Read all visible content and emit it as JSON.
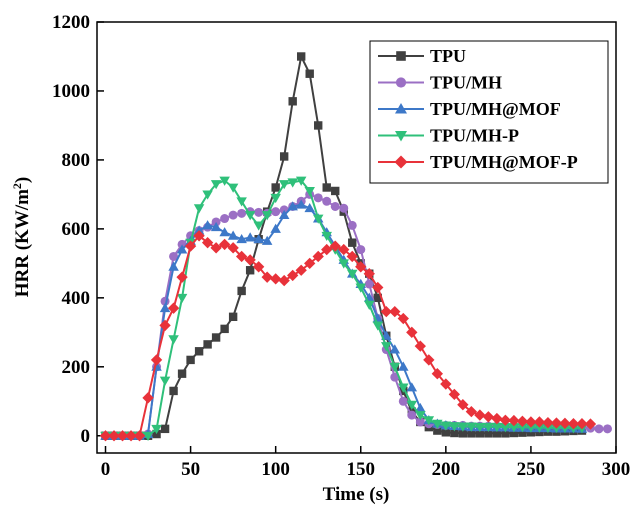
{
  "chart_data": {
    "type": "line",
    "title": "",
    "xlabel": "Time (s)",
    "ylabel_main": "HRR (KW/m",
    "ylabel_sup": "2",
    "ylabel_close": ")",
    "xlim": [
      -5,
      300
    ],
    "ylim": [
      -50,
      1200
    ],
    "xticks": [
      0,
      50,
      100,
      150,
      200,
      250,
      300
    ],
    "yticks": [
      0,
      200,
      400,
      600,
      800,
      1000,
      1200
    ],
    "grid": false,
    "legend_position": "top-right",
    "series": [
      {
        "name": "TPU",
        "color": "#404040",
        "marker": "square",
        "x": [
          0,
          5,
          10,
          15,
          20,
          25,
          30,
          35,
          40,
          45,
          50,
          55,
          60,
          65,
          70,
          75,
          80,
          85,
          90,
          95,
          100,
          105,
          110,
          115,
          120,
          125,
          130,
          135,
          140,
          145,
          150,
          155,
          160,
          165,
          170,
          175,
          180,
          185,
          190,
          195,
          200,
          205,
          210,
          215,
          220,
          225,
          230,
          235,
          240,
          245,
          250,
          255,
          260,
          265,
          270,
          275,
          280
        ],
        "y": [
          0,
          0,
          0,
          0,
          0,
          0,
          5,
          20,
          130,
          180,
          220,
          245,
          265,
          285,
          310,
          345,
          420,
          480,
          570,
          650,
          720,
          810,
          970,
          1100,
          1050,
          900,
          720,
          710,
          650,
          560,
          500,
          470,
          400,
          290,
          200,
          130,
          70,
          40,
          25,
          15,
          10,
          8,
          7,
          7,
          7,
          7,
          7,
          7,
          8,
          9,
          10,
          11,
          12,
          12,
          13,
          14,
          15
        ]
      },
      {
        "name": "TPU/MH",
        "color": "#9b6fc4",
        "marker": "circle",
        "x": [
          0,
          5,
          10,
          15,
          20,
          25,
          30,
          35,
          40,
          45,
          50,
          55,
          60,
          65,
          70,
          75,
          80,
          85,
          90,
          95,
          100,
          105,
          110,
          115,
          120,
          125,
          130,
          135,
          140,
          145,
          150,
          155,
          160,
          165,
          170,
          175,
          180,
          185,
          190,
          195,
          200,
          205,
          210,
          215,
          220,
          225,
          230,
          235,
          240,
          245,
          250,
          255,
          260,
          265,
          270,
          275,
          280,
          285,
          290,
          295
        ],
        "y": [
          0,
          0,
          0,
          0,
          0,
          5,
          200,
          390,
          520,
          555,
          580,
          595,
          605,
          620,
          630,
          640,
          645,
          650,
          648,
          645,
          650,
          655,
          665,
          680,
          700,
          690,
          680,
          665,
          660,
          610,
          540,
          440,
          340,
          250,
          170,
          100,
          60,
          40,
          35,
          33,
          30,
          30,
          30,
          28,
          28,
          28,
          28,
          28,
          28,
          27,
          27,
          27,
          26,
          26,
          25,
          25,
          24,
          22,
          20,
          20
        ]
      },
      {
        "name": "TPU/MH@MOF",
        "color": "#3d78c8",
        "marker": "triangle-up",
        "x": [
          0,
          5,
          10,
          15,
          20,
          25,
          30,
          35,
          40,
          45,
          50,
          55,
          60,
          65,
          70,
          75,
          80,
          85,
          90,
          95,
          100,
          105,
          110,
          115,
          120,
          125,
          130,
          135,
          140,
          145,
          150,
          155,
          160,
          165,
          170,
          175,
          180,
          185,
          190,
          195,
          200,
          205,
          210,
          215,
          220,
          225,
          230,
          235,
          240,
          245,
          250,
          255,
          260,
          265,
          270,
          275,
          280
        ],
        "y": [
          0,
          0,
          0,
          0,
          0,
          5,
          200,
          370,
          490,
          540,
          565,
          595,
          610,
          605,
          590,
          580,
          570,
          575,
          570,
          565,
          600,
          640,
          665,
          670,
          660,
          630,
          590,
          550,
          510,
          470,
          440,
          400,
          340,
          290,
          250,
          200,
          140,
          80,
          45,
          35,
          30,
          28,
          27,
          25,
          25,
          25,
          24,
          24,
          23,
          23,
          22,
          22,
          22,
          21,
          21,
          21,
          20
        ]
      },
      {
        "name": "TPU/MH-P",
        "color": "#2fc07a",
        "marker": "triangle-down",
        "x": [
          0,
          5,
          10,
          15,
          20,
          25,
          30,
          35,
          40,
          45,
          50,
          55,
          60,
          65,
          70,
          75,
          80,
          85,
          90,
          95,
          100,
          105,
          110,
          115,
          120,
          125,
          130,
          135,
          140,
          145,
          150,
          155,
          160,
          165,
          170,
          175,
          180,
          185,
          190,
          195,
          200,
          205,
          210,
          215,
          220,
          225,
          230,
          235,
          240,
          245,
          250,
          255,
          260,
          265,
          270,
          275,
          280
        ],
        "y": [
          0,
          0,
          0,
          0,
          0,
          0,
          20,
          160,
          280,
          400,
          560,
          660,
          700,
          730,
          740,
          720,
          680,
          640,
          610,
          640,
          690,
          730,
          735,
          740,
          710,
          630,
          580,
          540,
          500,
          470,
          430,
          380,
          320,
          260,
          200,
          140,
          90,
          60,
          45,
          35,
          30,
          28,
          27,
          27,
          26,
          26,
          26,
          25,
          25,
          25,
          24,
          24,
          23,
          23,
          23,
          22,
          22
        ]
      },
      {
        "name": "TPU/MH@MOF-P",
        "color": "#e8323a",
        "marker": "diamond",
        "x": [
          0,
          5,
          10,
          15,
          20,
          25,
          30,
          35,
          40,
          45,
          50,
          55,
          60,
          65,
          70,
          75,
          80,
          85,
          90,
          95,
          100,
          105,
          110,
          115,
          120,
          125,
          130,
          135,
          140,
          145,
          150,
          155,
          160,
          165,
          170,
          175,
          180,
          185,
          190,
          195,
          200,
          205,
          210,
          215,
          220,
          225,
          230,
          235,
          240,
          245,
          250,
          255,
          260,
          265,
          270,
          275,
          280,
          285
        ],
        "y": [
          0,
          0,
          0,
          0,
          0,
          110,
          220,
          320,
          370,
          460,
          550,
          580,
          560,
          545,
          555,
          545,
          520,
          510,
          490,
          460,
          455,
          450,
          465,
          480,
          500,
          520,
          540,
          550,
          540,
          520,
          490,
          470,
          430,
          360,
          360,
          340,
          300,
          260,
          220,
          180,
          150,
          120,
          90,
          70,
          60,
          55,
          50,
          45,
          44,
          42,
          40,
          40,
          38,
          37,
          36,
          35,
          35,
          34
        ]
      }
    ]
  }
}
